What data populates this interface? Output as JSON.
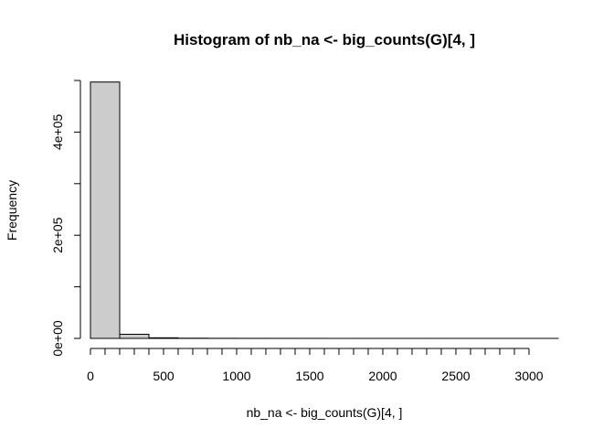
{
  "chart_data": {
    "type": "bar",
    "title": "Histogram of nb_na <- big_counts(G)[4, ]",
    "xlabel": "nb_na <- big_counts(G)[4, ]",
    "ylabel": "Frequency",
    "bins": [
      {
        "from": 0,
        "to": 200,
        "count": 497000
      },
      {
        "from": 200,
        "to": 400,
        "count": 8000
      },
      {
        "from": 400,
        "to": 600,
        "count": 1200
      },
      {
        "from": 600,
        "to": 800,
        "count": 400
      },
      {
        "from": 800,
        "to": 1000,
        "count": 200
      },
      {
        "from": 1000,
        "to": 1200,
        "count": 120
      },
      {
        "from": 1200,
        "to": 1400,
        "count": 80
      },
      {
        "from": 1400,
        "to": 1600,
        "count": 60
      },
      {
        "from": 1600,
        "to": 1800,
        "count": 40
      },
      {
        "from": 1800,
        "to": 2000,
        "count": 30
      },
      {
        "from": 2000,
        "to": 2200,
        "count": 20
      },
      {
        "from": 2200,
        "to": 2400,
        "count": 15
      },
      {
        "from": 2400,
        "to": 2600,
        "count": 10
      },
      {
        "from": 2600,
        "to": 2800,
        "count": 8
      },
      {
        "from": 2800,
        "to": 3000,
        "count": 5
      },
      {
        "from": 3000,
        "to": 3200,
        "count": 3
      }
    ],
    "xticks": [
      "0",
      "500",
      "1000",
      "1500",
      "2000",
      "2500",
      "3000"
    ],
    "xtick_values": [
      0,
      500,
      1000,
      1500,
      2000,
      2500,
      3000
    ],
    "yticks": [
      "0e+00",
      "2e+05",
      "4e+05"
    ],
    "ytick_values": [
      0,
      200000,
      400000
    ],
    "yminor_values": [
      100000,
      300000,
      500000
    ],
    "xlim": [
      0,
      3200
    ],
    "ylim": [
      0,
      500000
    ],
    "bar_fill": "#cccccc",
    "bar_stroke": "#000000",
    "grid": false
  }
}
